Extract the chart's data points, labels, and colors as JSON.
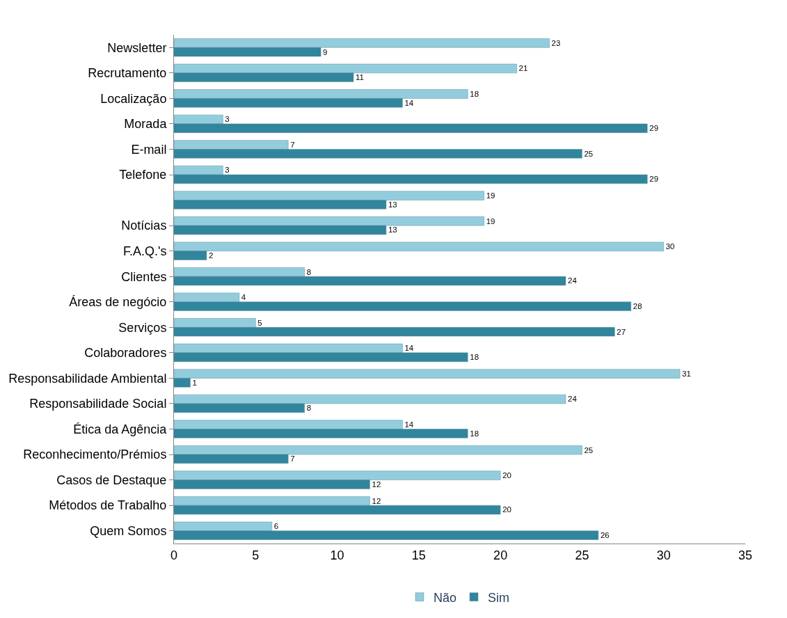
{
  "chart_data": {
    "type": "bar",
    "orientation": "horizontal",
    "categories": [
      "Newsletter",
      "Recrutamento",
      "Localização",
      "Morada",
      "E-mail",
      "Telefone",
      null,
      "Notícias",
      "F.A.Q.'s",
      "Clientes",
      "Áreas de negócio",
      "Serviços",
      "Colaboradores",
      "Responsabilidade Ambiental",
      "Responsabilidade Social",
      "Ética da Agência",
      "Reconhecimento/Prémios",
      "Casos de Destaque",
      "Métodos de Trabalho",
      "Quem Somos"
    ],
    "series": [
      {
        "name": "Não",
        "color": "#93cddd",
        "values": [
          23,
          21,
          18,
          3,
          7,
          3,
          19,
          19,
          30,
          8,
          4,
          5,
          14,
          31,
          24,
          14,
          25,
          20,
          12,
          6
        ]
      },
      {
        "name": "Sim",
        "color": "#31859c",
        "values": [
          9,
          11,
          14,
          29,
          25,
          29,
          13,
          13,
          2,
          24,
          28,
          27,
          18,
          1,
          8,
          18,
          7,
          12,
          20,
          26
        ]
      }
    ],
    "xlim": [
      0,
      35
    ],
    "xticks": [
      0,
      5,
      10,
      15,
      20,
      25,
      30,
      35
    ],
    "data_labels": true,
    "grid": false,
    "legend": "bottom"
  }
}
